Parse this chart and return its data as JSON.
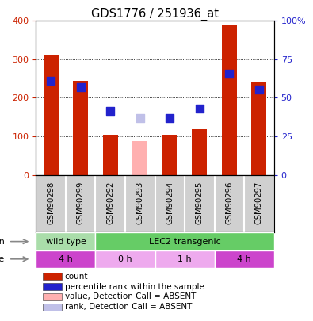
{
  "title": "GDS1776 / 251936_at",
  "samples": [
    "GSM90298",
    "GSM90299",
    "GSM90292",
    "GSM90293",
    "GSM90294",
    "GSM90295",
    "GSM90296",
    "GSM90297"
  ],
  "count_values": [
    310,
    245,
    105,
    null,
    105,
    118,
    390,
    240
  ],
  "count_absent": [
    null,
    null,
    null,
    88,
    null,
    null,
    null,
    null
  ],
  "rank_values": [
    245,
    228,
    165,
    null,
    148,
    173,
    262,
    222
  ],
  "rank_absent": [
    null,
    null,
    null,
    148,
    null,
    null,
    null,
    null
  ],
  "ylim_left": [
    0,
    400
  ],
  "ylim_right": [
    0,
    100
  ],
  "yticks_left": [
    0,
    100,
    200,
    300,
    400
  ],
  "yticks_right": [
    0,
    25,
    50,
    75,
    100
  ],
  "ytick_labels_right": [
    "0",
    "25",
    "50",
    "75",
    "100%"
  ],
  "grid_values": [
    100,
    200,
    300
  ],
  "strain_labels": [
    {
      "text": "wild type",
      "start": 0,
      "end": 2,
      "color": "#aaddaa"
    },
    {
      "text": "LEC2 transgenic",
      "start": 2,
      "end": 8,
      "color": "#66cc66"
    }
  ],
  "time_labels": [
    {
      "text": "4 h",
      "start": 0,
      "end": 2,
      "color": "#cc44cc"
    },
    {
      "text": "0 h",
      "start": 2,
      "end": 4,
      "color": "#eeaaee"
    },
    {
      "text": "1 h",
      "start": 4,
      "end": 6,
      "color": "#eeaaee"
    },
    {
      "text": "4 h",
      "start": 6,
      "end": 8,
      "color": "#cc44cc"
    }
  ],
  "legend_items": [
    {
      "color": "#cc2200",
      "label": "count"
    },
    {
      "color": "#2222cc",
      "label": "percentile rank within the sample"
    },
    {
      "color": "#ffb0b0",
      "label": "value, Detection Call = ABSENT"
    },
    {
      "color": "#c0c0e8",
      "label": "rank, Detection Call = ABSENT"
    }
  ],
  "bar_width": 0.5,
  "marker_size": 55,
  "ylabel_left_color": "#cc2200",
  "ylabel_right_color": "#2222cc",
  "bg_color": "#d0d0d0"
}
